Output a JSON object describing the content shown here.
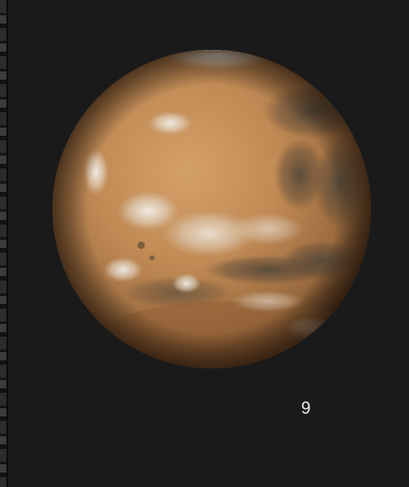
{
  "image": {
    "subject": "planet-mars",
    "icon": "mars-globe-icon",
    "background_color": "#1a1a1a",
    "planet_base_color": "#c08a55"
  },
  "page_number": "9"
}
